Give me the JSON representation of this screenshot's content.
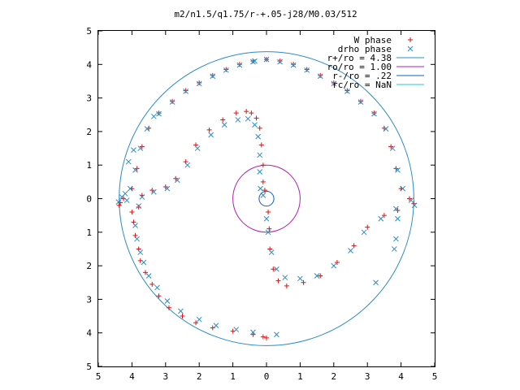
{
  "chart_data": {
    "type": "scatter",
    "title": "m2/n1.5/q1.75/r-+.05-j28/M0.03/512",
    "xlim": [
      -5,
      5
    ],
    "ylim": [
      -5,
      5
    ],
    "x_tick_labels": [
      "5",
      "4",
      "3",
      "2",
      "1",
      "0",
      "1",
      "2",
      "3",
      "4",
      "5"
    ],
    "y_tick_labels": [
      "5",
      "4",
      "3",
      "2",
      "1",
      "0",
      "1",
      "2",
      "3",
      "4",
      "5"
    ],
    "grid": false,
    "legend_position": "top-right",
    "legend": [
      {
        "label": "W phase",
        "marker": "plus",
        "color": "#e01010"
      },
      {
        "label": "drho phase",
        "marker": "x",
        "color": "#2a8cc8"
      },
      {
        "label": "r+/ro = 4.38",
        "marker": "line",
        "color": "#2a8cc8"
      },
      {
        "label": "ro/ro = 1.00",
        "marker": "line",
        "color": "#b020b0"
      },
      {
        "label": "r-/ro = .22",
        "marker": "line",
        "color": "#1060c0"
      },
      {
        "label": "rc/ro = NaN",
        "marker": "line",
        "color": "#20c8e0"
      }
    ],
    "circles": [
      {
        "name": "r+/ro = 4.38",
        "r": 4.38,
        "color": "#2a8cc8"
      },
      {
        "name": "ro/ro = 1.00",
        "r": 1.0,
        "color": "#b020b0"
      },
      {
        "name": "r-/ro = .22",
        "r": 0.22,
        "color": "#1060c0"
      }
    ],
    "series": [
      {
        "name": "W phase",
        "marker": "plus",
        "color": "#e01010",
        "points": [
          [
            0.0,
            4.15
          ],
          [
            -0.4,
            4.1
          ],
          [
            -0.8,
            4.0
          ],
          [
            -1.2,
            3.85
          ],
          [
            -1.6,
            3.67
          ],
          [
            -2.0,
            3.45
          ],
          [
            -2.4,
            3.22
          ],
          [
            -2.8,
            2.9
          ],
          [
            -3.2,
            2.55
          ],
          [
            -3.5,
            2.1
          ],
          [
            -3.7,
            1.55
          ],
          [
            -3.85,
            0.9
          ],
          [
            -4.0,
            0.3
          ],
          [
            -4.25,
            0.0
          ],
          [
            -4.35,
            -0.12
          ],
          [
            -4.38,
            -0.2
          ],
          [
            -4.0,
            -0.4
          ],
          [
            -3.95,
            -0.7
          ],
          [
            -3.9,
            -1.1
          ],
          [
            -3.8,
            -1.5
          ],
          [
            -3.75,
            -1.85
          ],
          [
            -3.6,
            -2.2
          ],
          [
            -3.4,
            -2.55
          ],
          [
            -3.2,
            -2.9
          ],
          [
            -2.9,
            -3.25
          ],
          [
            -2.5,
            -3.5
          ],
          [
            -2.1,
            -3.7
          ],
          [
            -1.6,
            -3.85
          ],
          [
            -1.0,
            -3.95
          ],
          [
            -0.4,
            -4.05
          ],
          [
            -0.1,
            -4.12
          ],
          [
            0.0,
            -4.15
          ],
          [
            -3.8,
            -0.25
          ],
          [
            -3.7,
            0.1
          ],
          [
            -3.4,
            0.25
          ],
          [
            -3.0,
            0.35
          ],
          [
            -2.7,
            0.6
          ],
          [
            -2.4,
            1.1
          ],
          [
            -2.1,
            1.6
          ],
          [
            -1.7,
            2.05
          ],
          [
            -1.3,
            2.35
          ],
          [
            -0.9,
            2.55
          ],
          [
            -0.6,
            2.6
          ],
          [
            -0.45,
            2.55
          ],
          [
            -0.3,
            2.4
          ],
          [
            -0.2,
            2.1
          ],
          [
            -0.15,
            1.6
          ],
          [
            -0.1,
            1.0
          ],
          [
            -0.1,
            0.5
          ],
          [
            -0.05,
            0.25
          ],
          [
            0.4,
            4.1
          ],
          [
            0.8,
            4.0
          ],
          [
            1.2,
            3.85
          ],
          [
            1.6,
            3.67
          ],
          [
            2.0,
            3.45
          ],
          [
            2.4,
            3.22
          ],
          [
            2.8,
            2.9
          ],
          [
            3.2,
            2.55
          ],
          [
            3.5,
            2.1
          ],
          [
            3.7,
            1.55
          ],
          [
            3.85,
            0.9
          ],
          [
            4.0,
            0.3
          ],
          [
            4.25,
            0.0
          ],
          [
            4.38,
            -0.15
          ],
          [
            3.9,
            -0.35
          ],
          [
            3.5,
            -0.5
          ],
          [
            3.0,
            -0.85
          ],
          [
            2.6,
            -1.4
          ],
          [
            2.1,
            -1.9
          ],
          [
            1.6,
            -2.3
          ],
          [
            1.1,
            -2.5
          ],
          [
            0.6,
            -2.6
          ],
          [
            0.35,
            -2.45
          ],
          [
            0.2,
            -2.1
          ],
          [
            0.1,
            -1.5
          ],
          [
            0.08,
            -0.9
          ],
          [
            0.05,
            -0.4
          ]
        ]
      },
      {
        "name": "drho phase",
        "marker": "x",
        "color": "#2a8cc8",
        "points": [
          [
            0.0,
            4.15
          ],
          [
            -0.4,
            4.08
          ],
          [
            -0.8,
            3.98
          ],
          [
            -1.2,
            3.83
          ],
          [
            -1.6,
            3.65
          ],
          [
            -2.0,
            3.43
          ],
          [
            -2.4,
            3.2
          ],
          [
            -2.8,
            2.88
          ],
          [
            -3.2,
            2.53
          ],
          [
            -3.55,
            2.08
          ],
          [
            -3.75,
            1.5
          ],
          [
            -3.9,
            0.85
          ],
          [
            -4.05,
            0.3
          ],
          [
            -4.3,
            0.05
          ],
          [
            -4.4,
            -0.1
          ],
          [
            -3.9,
            -0.8
          ],
          [
            -3.85,
            -1.2
          ],
          [
            -3.75,
            -1.6
          ],
          [
            -3.65,
            -1.9
          ],
          [
            -3.5,
            -2.3
          ],
          [
            -3.25,
            -2.65
          ],
          [
            -2.95,
            -3.05
          ],
          [
            -2.55,
            -3.35
          ],
          [
            -2.0,
            -3.6
          ],
          [
            -1.5,
            -3.78
          ],
          [
            -0.9,
            -3.9
          ],
          [
            -0.4,
            -3.98
          ],
          [
            0.3,
            -4.05
          ],
          [
            -3.8,
            -0.22
          ],
          [
            -3.7,
            0.05
          ],
          [
            -3.35,
            0.2
          ],
          [
            -2.95,
            0.3
          ],
          [
            -2.65,
            0.55
          ],
          [
            -2.35,
            1.0
          ],
          [
            -2.05,
            1.5
          ],
          [
            -1.65,
            1.9
          ],
          [
            -1.25,
            2.2
          ],
          [
            -0.85,
            2.35
          ],
          [
            -0.55,
            2.38
          ],
          [
            -0.35,
            2.2
          ],
          [
            -0.25,
            1.85
          ],
          [
            -0.2,
            1.3
          ],
          [
            -0.2,
            0.8
          ],
          [
            -0.18,
            0.3
          ],
          [
            -0.1,
            0.1
          ],
          [
            0.4,
            4.08
          ],
          [
            0.8,
            3.98
          ],
          [
            1.2,
            3.83
          ],
          [
            1.6,
            3.65
          ],
          [
            2.0,
            3.43
          ],
          [
            2.4,
            3.2
          ],
          [
            2.8,
            2.88
          ],
          [
            3.2,
            2.53
          ],
          [
            3.55,
            2.08
          ],
          [
            3.75,
            1.5
          ],
          [
            3.9,
            0.85
          ],
          [
            4.05,
            0.3
          ],
          [
            4.3,
            -0.05
          ],
          [
            4.4,
            -0.2
          ],
          [
            3.9,
            -0.6
          ],
          [
            3.85,
            -1.2
          ],
          [
            3.8,
            -1.5
          ],
          [
            3.25,
            -2.5
          ],
          [
            3.85,
            -0.3
          ],
          [
            3.4,
            -0.6
          ],
          [
            2.9,
            -1.0
          ],
          [
            2.5,
            -1.55
          ],
          [
            2.0,
            -2.0
          ],
          [
            1.5,
            -2.3
          ],
          [
            1.0,
            -2.38
          ],
          [
            0.55,
            -2.35
          ],
          [
            0.3,
            -2.1
          ],
          [
            0.15,
            -1.6
          ],
          [
            0.05,
            -1.0
          ],
          [
            0.0,
            -0.6
          ],
          [
            -4.15,
            -0.05
          ],
          [
            -4.2,
            0.15
          ],
          [
            -4.1,
            1.1
          ],
          [
            -3.95,
            1.45
          ],
          [
            -3.35,
            2.45
          ],
          [
            -0.35,
            4.1
          ]
        ]
      }
    ]
  }
}
